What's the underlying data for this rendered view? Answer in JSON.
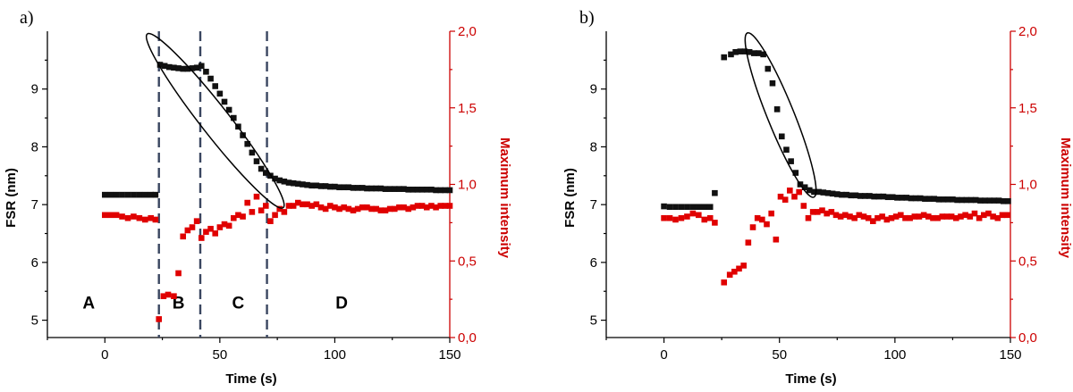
{
  "chart_data": [
    {
      "type": "scatter",
      "panel_label": "a)",
      "xlabel": "Time (s)",
      "ylabel_left": "FSR (nm)",
      "ylabel_right": "Maximum intensity",
      "xlim": [
        -25,
        150
      ],
      "ylim_left": [
        4.7,
        10.0
      ],
      "ylim_right": [
        0.0,
        2.0
      ],
      "xticks": [
        "0",
        "50",
        "100",
        "150"
      ],
      "xtick_values": [
        0,
        50,
        100,
        150
      ],
      "yticks_left": [
        "5",
        "6",
        "7",
        "8",
        "9"
      ],
      "ytick_values_left": [
        5,
        6,
        7,
        8,
        9
      ],
      "yticks_right": [
        "0,0",
        "0,5",
        "1,0",
        "1,5",
        "2,0"
      ],
      "ytick_values_right": [
        0,
        0.5,
        1.0,
        1.5,
        2.0
      ],
      "colors": {
        "fsr": "#111111",
        "intensity": "#e00000"
      },
      "vlines_x": [
        23.5,
        41.5,
        70.5
      ],
      "regions": [
        {
          "label": "A",
          "x": -7,
          "y": 5.2
        },
        {
          "label": "B",
          "x": 32,
          "y": 5.2
        },
        {
          "label": "C",
          "x": 58,
          "y": 5.2
        },
        {
          "label": "D",
          "x": 103,
          "y": 5.2
        }
      ],
      "ellipse": {
        "cx": 48,
        "cy": 8.45,
        "rx_data": 30,
        "ry_data": 0.45,
        "angle_deg": 52
      },
      "series": [
        {
          "axis": "left",
          "x": [
            0,
            2.5,
            5,
            7.5,
            10,
            12.5,
            15,
            17.5,
            20,
            22,
            24,
            26,
            28,
            30,
            32,
            34,
            36,
            38,
            40,
            42,
            44,
            46,
            48,
            50,
            52,
            54,
            56,
            58,
            60,
            62,
            64,
            66,
            68,
            70,
            72,
            74,
            76,
            78,
            80,
            82,
            84,
            86,
            88,
            90,
            92,
            94,
            96,
            98,
            100,
            102,
            104,
            106,
            108,
            110,
            112,
            114,
            116,
            118,
            120,
            122,
            124,
            126,
            128,
            130,
            132,
            134,
            136,
            138,
            140,
            142,
            144,
            146,
            148,
            150
          ],
          "y": [
            7.17,
            7.17,
            7.17,
            7.17,
            7.17,
            7.17,
            7.17,
            7.17,
            7.17,
            7.17,
            9.42,
            9.4,
            9.38,
            9.37,
            9.36,
            9.35,
            9.35,
            9.36,
            9.37,
            9.4,
            9.3,
            9.18,
            9.05,
            8.92,
            8.78,
            8.64,
            8.5,
            8.35,
            8.2,
            8.05,
            7.9,
            7.75,
            7.62,
            7.55,
            7.5,
            7.45,
            7.42,
            7.4,
            7.38,
            7.37,
            7.36,
            7.35,
            7.34,
            7.33,
            7.33,
            7.32,
            7.32,
            7.31,
            7.31,
            7.3,
            7.3,
            7.3,
            7.29,
            7.29,
            7.29,
            7.28,
            7.28,
            7.28,
            7.28,
            7.27,
            7.27,
            7.27,
            7.27,
            7.27,
            7.26,
            7.26,
            7.26,
            7.26,
            7.26,
            7.26,
            7.25,
            7.25,
            7.25,
            7.25
          ]
        },
        {
          "axis": "right",
          "x": [
            0,
            2.5,
            5,
            7.5,
            10,
            12.5,
            15,
            17.5,
            20,
            22,
            23.5,
            25.5,
            27.5,
            30,
            32,
            34,
            36,
            38,
            40,
            42,
            44,
            46,
            48,
            50,
            52,
            54,
            56,
            58,
            60,
            62,
            64,
            66,
            68,
            70,
            72,
            74,
            76,
            78,
            80,
            82,
            84,
            86,
            88,
            90,
            92,
            94,
            96,
            98,
            100,
            102,
            104,
            106,
            108,
            110,
            112,
            114,
            116,
            118,
            120,
            122,
            124,
            126,
            128,
            130,
            132,
            134,
            136,
            138,
            140,
            142,
            144,
            146,
            148,
            150
          ],
          "y": [
            0.8,
            0.8,
            0.8,
            0.79,
            0.78,
            0.79,
            0.78,
            0.77,
            0.78,
            0.77,
            0.12,
            0.27,
            0.28,
            0.27,
            0.42,
            0.66,
            0.7,
            0.72,
            0.76,
            0.65,
            0.69,
            0.71,
            0.68,
            0.72,
            0.74,
            0.73,
            0.78,
            0.8,
            0.79,
            0.88,
            0.82,
            0.92,
            0.83,
            0.86,
            0.76,
            0.8,
            0.84,
            0.82,
            0.86,
            0.86,
            0.88,
            0.87,
            0.87,
            0.86,
            0.87,
            0.85,
            0.84,
            0.86,
            0.85,
            0.84,
            0.85,
            0.84,
            0.83,
            0.84,
            0.85,
            0.85,
            0.84,
            0.84,
            0.83,
            0.83,
            0.84,
            0.84,
            0.85,
            0.85,
            0.84,
            0.85,
            0.86,
            0.86,
            0.85,
            0.86,
            0.85,
            0.86,
            0.86,
            0.86
          ]
        }
      ]
    },
    {
      "type": "scatter",
      "panel_label": "b)",
      "xlabel": "Time (s)",
      "ylabel_left": "FSR (nm)",
      "ylabel_right": "Maximum intensity",
      "xlim": [
        -25,
        150
      ],
      "ylim_left": [
        4.7,
        10.0
      ],
      "ylim_right": [
        0.0,
        2.0
      ],
      "xticks": [
        "0",
        "50",
        "100",
        "150"
      ],
      "xtick_values": [
        0,
        50,
        100,
        150
      ],
      "yticks_left": [
        "5",
        "6",
        "7",
        "8",
        "9"
      ],
      "ytick_values_left": [
        5,
        6,
        7,
        8,
        9
      ],
      "yticks_right": [
        "0,0",
        "0,5",
        "1,0",
        "1,5",
        "2,0"
      ],
      "ytick_values_right": [
        0,
        0.5,
        1.0,
        1.5,
        2.0
      ],
      "colors": {
        "fsr": "#111111",
        "intensity": "#e00000"
      },
      "vlines_x": [],
      "regions": [],
      "ellipse": {
        "cx": 50.5,
        "cy": 8.55,
        "rx_data": 24,
        "ry_data": 0.42,
        "angle_deg": 68
      },
      "series": [
        {
          "axis": "left",
          "x": [
            0,
            2.5,
            5,
            7.5,
            10,
            12.5,
            15,
            17.5,
            20,
            22,
            26,
            29,
            31,
            33,
            35,
            37,
            39,
            41,
            43,
            45,
            47,
            49,
            51,
            53,
            55,
            57,
            59,
            61,
            63,
            65,
            67,
            69,
            71,
            73,
            75,
            77,
            79,
            81,
            83,
            85,
            87,
            89,
            91,
            93,
            95,
            97,
            99,
            101,
            103,
            105,
            107,
            109,
            111,
            113,
            115,
            117,
            119,
            121,
            123,
            125,
            127,
            129,
            131,
            133,
            135,
            137,
            139,
            141,
            143,
            145,
            147,
            149
          ],
          "y": [
            6.97,
            6.96,
            6.96,
            6.96,
            6.96,
            6.96,
            6.96,
            6.96,
            6.96,
            7.2,
            9.55,
            9.6,
            9.64,
            9.65,
            9.65,
            9.64,
            9.62,
            9.62,
            9.6,
            9.35,
            9.1,
            8.65,
            8.18,
            7.95,
            7.75,
            7.55,
            7.35,
            7.3,
            7.25,
            7.22,
            7.22,
            7.21,
            7.2,
            7.19,
            7.18,
            7.17,
            7.17,
            7.16,
            7.16,
            7.15,
            7.15,
            7.15,
            7.14,
            7.14,
            7.14,
            7.13,
            7.13,
            7.12,
            7.12,
            7.12,
            7.11,
            7.11,
            7.11,
            7.1,
            7.1,
            7.1,
            7.09,
            7.09,
            7.09,
            7.09,
            7.08,
            7.08,
            7.08,
            7.08,
            7.08,
            7.07,
            7.07,
            7.07,
            7.07,
            7.07,
            7.06,
            7.06
          ]
        },
        {
          "axis": "right",
          "x": [
            0,
            2.5,
            5,
            7.5,
            10,
            12.5,
            15,
            17.5,
            20,
            22,
            26,
            28.5,
            30.5,
            32.5,
            34.5,
            36.5,
            38.5,
            40.5,
            42.5,
            44.5,
            46.5,
            48.5,
            50.5,
            52.5,
            54.5,
            56.5,
            58.5,
            60.5,
            62.5,
            64.5,
            66.5,
            68.5,
            70.5,
            72.5,
            74.5,
            76.5,
            78.5,
            80.5,
            82.5,
            84.5,
            86.5,
            88.5,
            90.5,
            92.5,
            94.5,
            96.5,
            98.5,
            100.5,
            102.5,
            104.5,
            106.5,
            108.5,
            110.5,
            112.5,
            114.5,
            116.5,
            118.5,
            120.5,
            122.5,
            124.5,
            126.5,
            128.5,
            130.5,
            132.5,
            134.5,
            136.5,
            138.5,
            140.5,
            142.5,
            144.5,
            146.5,
            148.5
          ],
          "y": [
            0.78,
            0.78,
            0.77,
            0.78,
            0.79,
            0.81,
            0.8,
            0.77,
            0.78,
            0.75,
            0.36,
            0.41,
            0.43,
            0.45,
            0.47,
            0.62,
            0.72,
            0.78,
            0.77,
            0.74,
            0.81,
            0.64,
            0.92,
            0.9,
            0.96,
            0.92,
            0.95,
            0.86,
            0.78,
            0.82,
            0.82,
            0.83,
            0.81,
            0.82,
            0.8,
            0.79,
            0.8,
            0.79,
            0.78,
            0.8,
            0.79,
            0.78,
            0.76,
            0.78,
            0.79,
            0.77,
            0.78,
            0.79,
            0.8,
            0.78,
            0.78,
            0.79,
            0.79,
            0.8,
            0.79,
            0.78,
            0.78,
            0.79,
            0.79,
            0.79,
            0.78,
            0.79,
            0.8,
            0.79,
            0.81,
            0.78,
            0.8,
            0.81,
            0.79,
            0.78,
            0.8,
            0.8
          ]
        }
      ]
    }
  ]
}
